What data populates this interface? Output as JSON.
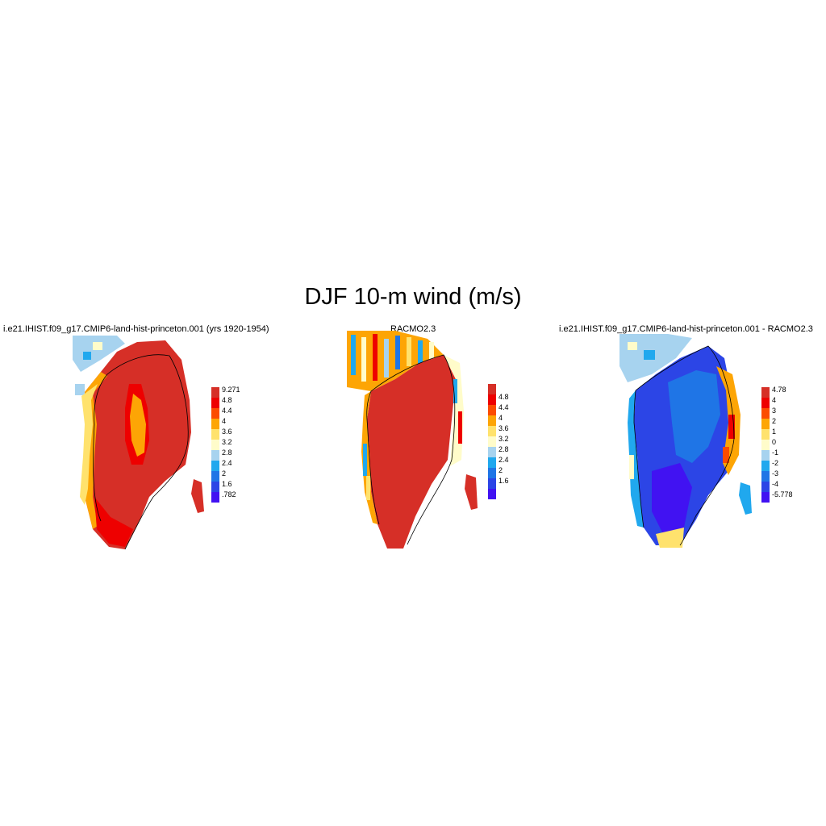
{
  "figure": {
    "title": "DJF 10-m wind (m/s)"
  },
  "panels": [
    {
      "title": "i.e21.IHIST.f09_g17.CMIP6-land-hist-princeton.001 (yrs 1920-1954)",
      "colorbar": {
        "labels": [
          "9.271",
          "4.8",
          "4.4",
          "4",
          "3.6",
          "3.2",
          "2.8",
          "2.4",
          "2",
          "1.6",
          ".782"
        ],
        "colors": [
          "#d62f27",
          "#ee0000",
          "#fc4c00",
          "#fda505",
          "#ffe26d",
          "#fffcca",
          "#a7d3ef",
          "#20a8ee",
          "#1f75e6",
          "#2c45e6",
          "#4112f2"
        ]
      }
    },
    {
      "title": "RACMO2.3",
      "colorbar": {
        "labels": [
          "4.8",
          "4.4",
          "4",
          "3.6",
          "3.2",
          "2.8",
          "2.4",
          "2",
          "1.6"
        ],
        "colors": [
          "#d62f27",
          "#ee0000",
          "#fc4c00",
          "#fda505",
          "#ffe26d",
          "#fffcca",
          "#a7d3ef",
          "#20a8ee",
          "#1f75e6",
          "#2c45e6",
          "#4112f2"
        ]
      }
    },
    {
      "title": "i.e21.IHIST.f09_g17.CMIP6-land-hist-princeton.001 - RACMO2.3",
      "colorbar": {
        "labels": [
          "4.78",
          "4",
          "3",
          "2",
          "1",
          "0",
          "-1",
          "-2",
          "-3",
          "-4",
          "-5.778"
        ],
        "colors": [
          "#d62f27",
          "#ee0000",
          "#fc4c00",
          "#fda505",
          "#ffe26d",
          "#fffcca",
          "#a7d3ef",
          "#20a8ee",
          "#1f75e6",
          "#2c45e6",
          "#4112f2"
        ]
      }
    }
  ]
}
